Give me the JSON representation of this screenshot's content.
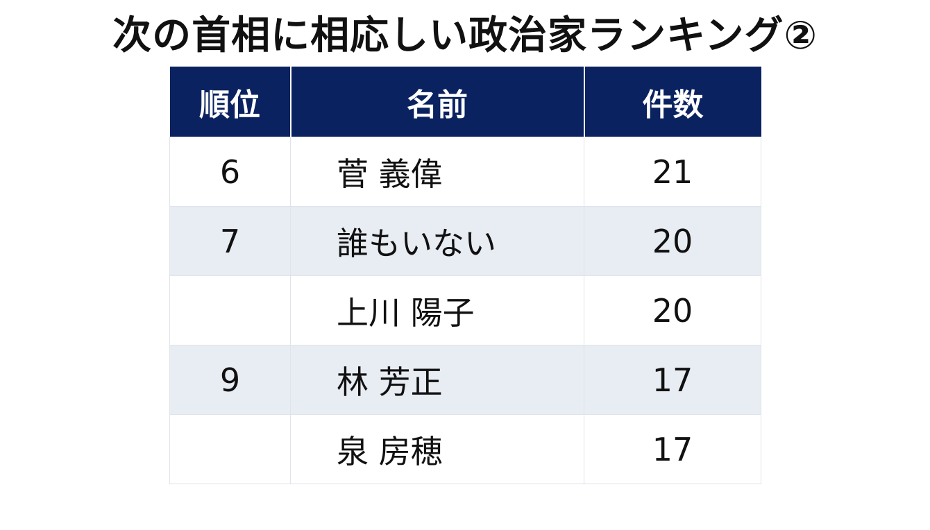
{
  "title": "次の首相に相応しい政治家ランキング②",
  "headers": {
    "rank": "順位",
    "name": "名前",
    "count": "件数"
  },
  "rows": [
    {
      "rank": "6",
      "name": "菅 義偉",
      "count": "21"
    },
    {
      "rank": "7",
      "name": "誰もいない",
      "count": "20"
    },
    {
      "rank": "",
      "name": "上川 陽子",
      "count": "20"
    },
    {
      "rank": "9",
      "name": "林 芳正",
      "count": "17"
    },
    {
      "rank": "",
      "name": "泉 房穂",
      "count": "17"
    }
  ],
  "colors": {
    "header_bg": "#0b2260",
    "header_text": "#ffffff",
    "alt_row_bg": "#e8ecf3",
    "grid": "#dfe3ea"
  }
}
